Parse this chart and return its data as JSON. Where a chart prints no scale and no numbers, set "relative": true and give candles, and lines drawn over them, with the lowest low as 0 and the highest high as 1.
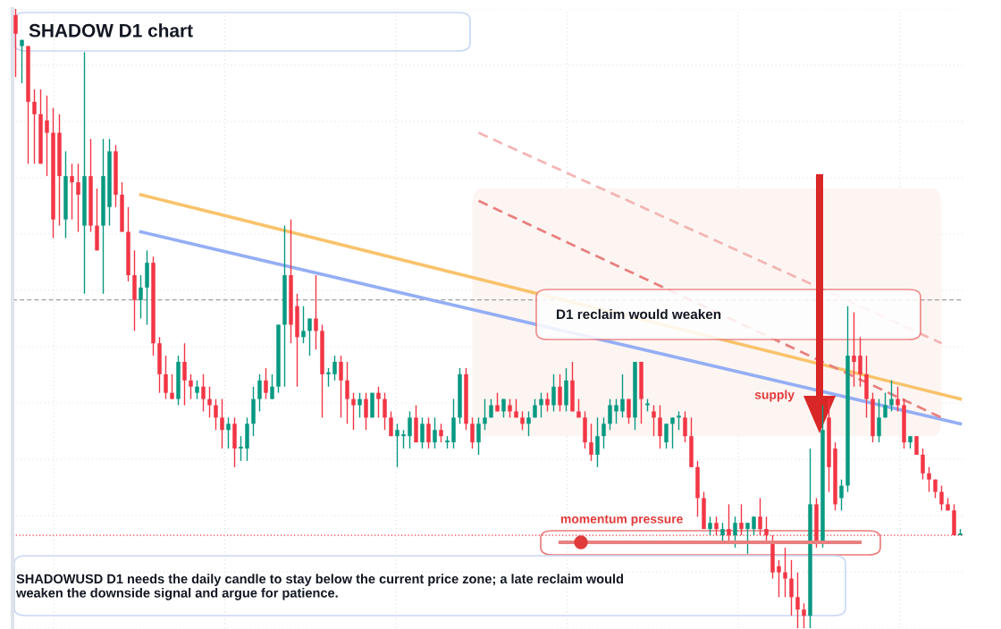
{
  "chart_data": {
    "type": "candlestick",
    "title": "SHADOW D1 chart",
    "relative": true,
    "grid": true,
    "categories": [
      null,
      null,
      null,
      null,
      null,
      null,
      null,
      null,
      null,
      null,
      null,
      null,
      null,
      null,
      null,
      null,
      null,
      null,
      null,
      null,
      null,
      null,
      null,
      null,
      null,
      null,
      null,
      null,
      null,
      null,
      null,
      null,
      null,
      null,
      null,
      null,
      null,
      null,
      null,
      null,
      null,
      null,
      null,
      null,
      null,
      null,
      null,
      null,
      null,
      null,
      null,
      null,
      null,
      null,
      null,
      null,
      null,
      null,
      null,
      null,
      null,
      null,
      null,
      null,
      null,
      null,
      null,
      null,
      null,
      null,
      null,
      null,
      null,
      null,
      null,
      null,
      null,
      null,
      null,
      null,
      null,
      null,
      null,
      null,
      null,
      null,
      null,
      null,
      null,
      null,
      null,
      null,
      null,
      null,
      null,
      null,
      null,
      null,
      null,
      null,
      null,
      null,
      null,
      null,
      null,
      null,
      null,
      null,
      null,
      null,
      null,
      null,
      null,
      null,
      null,
      null,
      null,
      null,
      null,
      null,
      null,
      null,
      null,
      null,
      null,
      null,
      null,
      null,
      null,
      null,
      null,
      null,
      null,
      null,
      null,
      null,
      null,
      null,
      null,
      null,
      null,
      null,
      null,
      null,
      null,
      null,
      null,
      null,
      null,
      null,
      null,
      null
    ],
    "ohlc": [
      [
        0.99,
        1.0,
        0.89,
        0.96
      ],
      [
        0.94,
        0.95,
        0.88,
        0.95
      ],
      [
        0.94,
        0.94,
        0.75,
        0.85
      ],
      [
        0.85,
        0.87,
        0.75,
        0.83
      ],
      [
        0.83,
        0.87,
        0.75,
        0.75
      ],
      [
        0.82,
        0.86,
        0.73,
        0.8
      ],
      [
        0.8,
        0.84,
        0.63,
        0.66
      ],
      [
        0.8,
        0.83,
        0.65,
        0.73
      ],
      [
        0.66,
        0.77,
        0.63,
        0.73
      ],
      [
        0.73,
        0.75,
        0.66,
        0.72
      ],
      [
        0.72,
        0.75,
        0.64,
        0.7
      ],
      [
        0.65,
        0.93,
        0.54,
        0.73
      ],
      [
        0.73,
        0.79,
        0.64,
        0.65
      ],
      [
        0.65,
        0.71,
        0.61,
        0.61
      ],
      [
        0.65,
        0.79,
        0.54,
        0.73
      ],
      [
        0.68,
        0.79,
        0.65,
        0.77
      ],
      [
        0.77,
        0.78,
        0.68,
        0.7
      ],
      [
        0.7,
        0.72,
        0.64,
        0.64
      ],
      [
        0.64,
        0.68,
        0.56,
        0.57
      ],
      [
        0.57,
        0.61,
        0.48,
        0.53
      ],
      [
        0.53,
        0.57,
        0.5,
        0.55
      ],
      [
        0.55,
        0.61,
        0.49,
        0.59
      ],
      [
        0.59,
        0.6,
        0.44,
        0.46
      ],
      [
        0.46,
        0.47,
        0.38,
        0.41
      ],
      [
        0.41,
        0.44,
        0.37,
        0.38
      ],
      [
        0.38,
        0.41,
        0.37,
        0.37
      ],
      [
        0.37,
        0.44,
        0.36,
        0.43
      ],
      [
        0.43,
        0.46,
        0.36,
        0.4
      ],
      [
        0.4,
        0.41,
        0.37,
        0.39
      ],
      [
        0.38,
        0.4,
        0.37,
        0.39
      ],
      [
        0.39,
        0.41,
        0.35,
        0.37
      ],
      [
        0.37,
        0.39,
        0.34,
        0.36
      ],
      [
        0.36,
        0.37,
        0.32,
        0.34
      ],
      [
        0.34,
        0.37,
        0.29,
        0.32
      ],
      [
        0.32,
        0.34,
        0.29,
        0.33
      ],
      [
        0.33,
        0.34,
        0.26,
        0.29
      ],
      [
        0.29,
        0.31,
        0.27,
        0.29
      ],
      [
        0.29,
        0.34,
        0.27,
        0.33
      ],
      [
        0.33,
        0.39,
        0.31,
        0.37
      ],
      [
        0.37,
        0.41,
        0.35,
        0.4
      ],
      [
        0.4,
        0.42,
        0.37,
        0.38
      ],
      [
        0.37,
        0.41,
        0.37,
        0.39
      ],
      [
        0.39,
        0.49,
        0.38,
        0.49
      ],
      [
        0.49,
        0.65,
        0.39,
        0.57
      ],
      [
        0.57,
        0.66,
        0.46,
        0.49
      ],
      [
        0.52,
        0.54,
        0.39,
        0.47
      ],
      [
        0.47,
        0.52,
        0.46,
        0.48
      ],
      [
        0.48,
        0.5,
        0.44,
        0.5
      ],
      [
        0.5,
        0.57,
        0.45,
        0.48
      ],
      [
        0.48,
        0.49,
        0.34,
        0.41
      ],
      [
        0.41,
        0.42,
        0.39,
        0.41
      ],
      [
        0.41,
        0.44,
        0.4,
        0.43
      ],
      [
        0.43,
        0.44,
        0.34,
        0.4
      ],
      [
        0.4,
        0.43,
        0.33,
        0.37
      ],
      [
        0.37,
        0.38,
        0.32,
        0.36
      ],
      [
        0.36,
        0.38,
        0.34,
        0.37
      ],
      [
        0.37,
        0.38,
        0.32,
        0.34
      ],
      [
        0.34,
        0.38,
        0.34,
        0.38
      ],
      [
        0.38,
        0.39,
        0.34,
        0.37
      ],
      [
        0.37,
        0.38,
        0.32,
        0.34
      ],
      [
        0.34,
        0.35,
        0.31,
        0.31
      ],
      [
        0.31,
        0.33,
        0.26,
        0.32
      ],
      [
        0.31,
        0.32,
        0.29,
        0.31
      ],
      [
        0.31,
        0.35,
        0.29,
        0.34
      ],
      [
        0.34,
        0.36,
        0.3,
        0.3
      ],
      [
        0.3,
        0.34,
        0.29,
        0.33
      ],
      [
        0.33,
        0.34,
        0.29,
        0.3
      ],
      [
        0.3,
        0.34,
        0.29,
        0.32
      ],
      [
        0.32,
        0.33,
        0.3,
        0.31
      ],
      [
        0.3,
        0.31,
        0.29,
        0.3
      ],
      [
        0.3,
        0.37,
        0.29,
        0.34
      ],
      [
        0.34,
        0.42,
        0.33,
        0.41
      ],
      [
        0.41,
        0.42,
        0.32,
        0.33
      ],
      [
        0.33,
        0.34,
        0.29,
        0.3
      ],
      [
        0.3,
        0.34,
        0.28,
        0.33
      ],
      [
        0.33,
        0.37,
        0.32,
        0.34
      ],
      [
        0.34,
        0.37,
        0.34,
        0.36
      ],
      [
        0.36,
        0.38,
        0.35,
        0.35
      ],
      [
        0.35,
        0.37,
        0.34,
        0.37
      ],
      [
        0.36,
        0.37,
        0.34,
        0.35
      ],
      [
        0.35,
        0.37,
        0.34,
        0.34
      ],
      [
        0.34,
        0.35,
        0.32,
        0.33
      ],
      [
        0.33,
        0.35,
        0.31,
        0.34
      ],
      [
        0.34,
        0.37,
        0.34,
        0.36
      ],
      [
        0.36,
        0.38,
        0.34,
        0.37
      ],
      [
        0.37,
        0.38,
        0.35,
        0.36
      ],
      [
        0.36,
        0.41,
        0.35,
        0.39
      ],
      [
        0.39,
        0.41,
        0.35,
        0.36
      ],
      [
        0.36,
        0.42,
        0.35,
        0.4
      ],
      [
        0.4,
        0.43,
        0.35,
        0.35
      ],
      [
        0.35,
        0.37,
        0.34,
        0.34
      ],
      [
        0.34,
        0.35,
        0.29,
        0.3
      ],
      [
        0.3,
        0.33,
        0.27,
        0.28
      ],
      [
        0.28,
        0.34,
        0.26,
        0.31
      ],
      [
        0.31,
        0.34,
        0.29,
        0.33
      ],
      [
        0.33,
        0.37,
        0.32,
        0.36
      ],
      [
        0.35,
        0.37,
        0.33,
        0.36
      ],
      [
        0.35,
        0.41,
        0.34,
        0.37
      ],
      [
        0.37,
        0.37,
        0.33,
        0.34
      ],
      [
        0.34,
        0.43,
        0.32,
        0.43
      ],
      [
        0.43,
        0.43,
        0.33,
        0.37
      ],
      [
        0.36,
        0.37,
        0.35,
        0.36
      ],
      [
        0.35,
        0.36,
        0.31,
        0.34
      ],
      [
        0.34,
        0.36,
        0.29,
        0.31
      ],
      [
        0.3,
        0.33,
        0.29,
        0.33
      ],
      [
        0.33,
        0.34,
        0.29,
        0.34
      ],
      [
        0.34,
        0.35,
        0.32,
        0.34
      ],
      [
        0.34,
        0.35,
        0.3,
        0.31
      ],
      [
        0.31,
        0.34,
        0.26,
        0.26
      ],
      [
        0.26,
        0.27,
        0.18,
        0.21
      ],
      [
        0.21,
        0.22,
        0.16,
        0.16
      ],
      [
        0.16,
        0.18,
        0.15,
        0.17
      ],
      [
        0.17,
        0.18,
        0.15,
        0.16
      ],
      [
        0.15,
        0.17,
        0.14,
        0.16
      ],
      [
        0.16,
        0.2,
        0.14,
        0.15
      ],
      [
        0.15,
        0.18,
        0.13,
        0.17
      ],
      [
        0.17,
        0.2,
        0.15,
        0.16
      ],
      [
        0.16,
        0.17,
        0.12,
        0.17
      ],
      [
        0.16,
        0.18,
        0.15,
        0.18
      ],
      [
        0.18,
        0.21,
        0.15,
        0.16
      ],
      [
        0.16,
        0.18,
        0.14,
        0.15
      ],
      [
        0.14,
        0.15,
        0.08,
        0.09
      ],
      [
        0.1,
        0.11,
        0.05,
        0.09
      ],
      [
        0.09,
        0.13,
        0.05,
        0.08
      ],
      [
        0.08,
        0.11,
        0.02,
        0.05
      ],
      [
        0.05,
        0.09,
        0.0,
        0.03
      ],
      [
        0.03,
        0.04,
        0.0,
        0.02
      ],
      [
        0.02,
        0.29,
        0.0,
        0.2
      ],
      [
        0.2,
        0.21,
        0.13,
        0.14
      ],
      [
        0.14,
        0.36,
        0.13,
        0.32
      ],
      [
        0.34,
        0.37,
        0.22,
        0.26
      ],
      [
        0.29,
        0.3,
        0.19,
        0.2
      ],
      [
        0.21,
        0.24,
        0.19,
        0.23
      ],
      [
        0.23,
        0.52,
        0.22,
        0.44
      ],
      [
        0.44,
        0.51,
        0.39,
        0.43
      ],
      [
        0.44,
        0.47,
        0.39,
        0.41
      ],
      [
        0.41,
        0.44,
        0.34,
        0.37
      ],
      [
        0.37,
        0.38,
        0.3,
        0.31
      ],
      [
        0.31,
        0.37,
        0.3,
        0.34
      ],
      [
        0.34,
        0.38,
        0.34,
        0.36
      ],
      [
        0.36,
        0.4,
        0.35,
        0.37
      ],
      [
        0.37,
        0.39,
        0.35,
        0.36
      ],
      [
        0.36,
        0.37,
        0.29,
        0.3
      ],
      [
        0.3,
        0.31,
        0.29,
        0.31
      ],
      [
        0.31,
        0.31,
        0.28,
        0.28
      ],
      [
        0.28,
        0.29,
        0.24,
        0.25
      ],
      [
        0.25,
        0.26,
        0.22,
        0.24
      ],
      [
        0.24,
        0.24,
        0.21,
        0.22
      ],
      [
        0.22,
        0.23,
        0.19,
        0.2
      ],
      [
        0.2,
        0.21,
        0.19,
        0.19
      ],
      [
        0.19,
        0.2,
        0.15,
        0.15
      ],
      [
        0.15,
        0.16,
        0.15,
        0.15
      ]
    ],
    "series": [
      {
        "type": "line",
        "color": "#f9c36b",
        "line_style": "solid",
        "values": [
          null,
          null,
          null,
          null,
          null,
          null,
          null,
          null,
          null,
          null,
          null,
          null,
          null,
          null,
          null,
          null,
          null,
          null,
          null,
          null,
          0.7,
          null,
          null,
          null,
          null,
          null,
          null,
          null,
          null,
          null,
          null,
          null,
          null,
          null,
          null,
          null,
          null,
          null,
          null,
          null,
          null,
          null,
          null,
          null,
          null,
          null,
          null,
          null,
          null,
          null,
          null,
          null,
          null,
          null,
          null,
          null,
          null,
          null,
          null,
          null,
          null,
          null,
          null,
          null,
          null,
          null,
          null,
          null,
          null,
          null,
          null,
          null,
          null,
          null,
          null,
          null,
          null,
          null,
          null,
          null,
          null,
          null,
          null,
          null,
          null,
          null,
          null,
          null,
          null,
          null,
          null,
          null,
          null,
          null,
          null,
          null,
          null,
          null,
          null,
          null,
          null,
          null,
          null,
          null,
          null,
          null,
          null,
          null,
          null,
          null,
          null,
          null,
          null,
          null,
          null,
          null,
          null,
          null,
          null,
          null,
          null,
          null,
          null,
          null,
          null,
          null,
          null,
          null,
          null,
          null,
          null,
          null,
          null,
          null,
          null,
          null,
          null,
          null,
          null,
          null,
          null,
          null,
          null,
          null,
          null,
          null,
          null,
          null,
          null,
          null,
          null,
          0.37
        ]
      },
      {
        "type": "line",
        "color": "#94aef5",
        "line_style": "solid",
        "values": [
          null,
          null,
          null,
          null,
          null,
          null,
          null,
          null,
          null,
          null,
          null,
          null,
          null,
          null,
          null,
          null,
          null,
          null,
          null,
          null,
          0.64,
          null,
          null,
          null,
          null,
          null,
          null,
          null,
          null,
          null,
          null,
          null,
          null,
          null,
          null,
          null,
          null,
          null,
          null,
          null,
          null,
          null,
          null,
          null,
          null,
          null,
          null,
          null,
          null,
          null,
          null,
          null,
          null,
          null,
          null,
          null,
          null,
          null,
          null,
          null,
          null,
          null,
          null,
          null,
          null,
          null,
          null,
          null,
          null,
          null,
          null,
          null,
          null,
          null,
          null,
          null,
          null,
          null,
          null,
          null,
          null,
          null,
          null,
          null,
          null,
          null,
          null,
          null,
          null,
          null,
          null,
          null,
          null,
          null,
          null,
          null,
          null,
          null,
          null,
          null,
          null,
          null,
          null,
          null,
          null,
          null,
          null,
          null,
          null,
          null,
          null,
          null,
          null,
          null,
          null,
          null,
          null,
          null,
          null,
          null,
          null,
          null,
          null,
          null,
          null,
          null,
          null,
          null,
          null,
          null,
          null,
          null,
          null,
          null,
          null,
          null,
          null,
          null,
          null,
          null,
          null,
          null,
          null,
          null,
          null,
          null,
          null,
          null,
          null,
          null,
          null,
          0.33
        ]
      },
      {
        "type": "line",
        "color": "#e88080",
        "line_style": "dashed",
        "values": [
          null,
          null,
          null,
          null,
          null,
          null,
          null,
          null,
          null,
          null,
          null,
          null,
          null,
          null,
          null,
          null,
          null,
          null,
          null,
          null,
          null,
          null,
          null,
          null,
          null,
          null,
          null,
          null,
          null,
          null,
          null,
          null,
          null,
          null,
          null,
          null,
          null,
          null,
          null,
          null,
          null,
          null,
          null,
          null,
          null,
          null,
          null,
          null,
          null,
          null,
          null,
          null,
          null,
          null,
          null,
          null,
          null,
          null,
          null,
          null,
          null,
          null,
          null,
          null,
          null,
          null,
          null,
          null,
          null,
          null,
          null,
          null,
          null,
          null,
          0.69,
          null,
          null,
          null,
          null,
          null,
          null,
          null,
          null,
          null,
          null,
          null,
          null,
          null,
          null,
          null,
          null,
          null,
          null,
          null,
          null,
          null,
          null,
          null,
          null,
          null,
          null,
          null,
          null,
          null,
          null,
          null,
          null,
          null,
          null,
          null,
          null,
          null,
          null,
          null,
          null,
          null,
          null,
          null,
          null,
          null,
          null,
          null,
          null,
          null,
          null,
          null,
          null,
          null,
          null,
          null,
          null,
          null,
          null,
          null,
          null,
          null,
          null,
          null,
          null,
          null,
          null,
          null,
          null,
          null,
          null,
          null,
          null,
          null,
          0.34,
          null,
          null,
          null
        ]
      },
      {
        "type": "line",
        "color": "#f4b5b5",
        "line_style": "dashed",
        "values": [
          null,
          null,
          null,
          null,
          null,
          null,
          null,
          null,
          null,
          null,
          null,
          null,
          null,
          null,
          null,
          null,
          null,
          null,
          null,
          null,
          null,
          null,
          null,
          null,
          null,
          null,
          null,
          null,
          null,
          null,
          null,
          null,
          null,
          null,
          null,
          null,
          null,
          null,
          null,
          null,
          null,
          null,
          null,
          null,
          null,
          null,
          null,
          null,
          null,
          null,
          null,
          null,
          null,
          null,
          null,
          null,
          null,
          null,
          null,
          null,
          null,
          null,
          null,
          null,
          null,
          null,
          null,
          null,
          null,
          null,
          null,
          null,
          null,
          null,
          0.8,
          null,
          null,
          null,
          null,
          null,
          null,
          null,
          null,
          null,
          null,
          null,
          null,
          null,
          null,
          null,
          null,
          null,
          null,
          null,
          null,
          null,
          null,
          null,
          null,
          null,
          null,
          null,
          null,
          null,
          null,
          null,
          null,
          null,
          null,
          null,
          null,
          null,
          null,
          null,
          null,
          null,
          null,
          null,
          null,
          null,
          null,
          null,
          null,
          null,
          null,
          null,
          null,
          null,
          null,
          null,
          null,
          null,
          null,
          null,
          null,
          null,
          null,
          null,
          null,
          null,
          null,
          null,
          null,
          null,
          null,
          null,
          null,
          null,
          0.46,
          null,
          null,
          null
        ]
      }
    ],
    "ref_lines": [
      {
        "axis": "y",
        "value": 0.15,
        "color": "#f23645",
        "line_style": "dotted"
      },
      {
        "axis": "y",
        "value": 0.53,
        "color": "#9e9e9e",
        "line_style": "dashed"
      }
    ],
    "bands": [
      {
        "axis": "y",
        "from": 0.31,
        "to": 0.71,
        "label": "supply",
        "color": "#fdf5f2"
      }
    ],
    "annotations": [
      "D1 reclaim would weaken",
      "momentum pressure",
      "SHADOWUSD D1 needs the daily candle to stay below the current price zone; a late reclaim would weaken the downside signal and argue for patience."
    ]
  }
}
